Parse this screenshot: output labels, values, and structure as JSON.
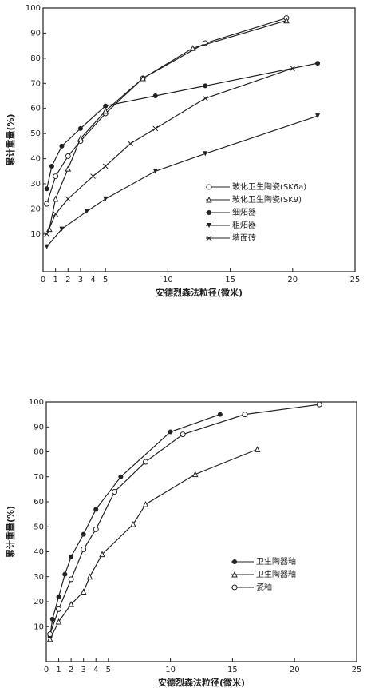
{
  "chart_data": [
    {
      "type": "line",
      "xlabel": "安德烈森法粒径(微米)",
      "ylabel": "累计重量(%)",
      "xlim": [
        0,
        25
      ],
      "ylim": [
        -5,
        100
      ],
      "xticks": [
        0,
        1,
        2,
        3,
        4,
        5,
        10,
        15,
        20,
        25
      ],
      "yticks": [
        10,
        20,
        30,
        40,
        50,
        60,
        70,
        80,
        90,
        100
      ],
      "series": [
        {
          "name": "玻化卫生陶瓷(SK6a)",
          "color": "#222",
          "marker": "circle-open",
          "x": [
            0.3,
            1,
            2,
            3,
            5,
            8,
            13,
            19.5
          ],
          "values": [
            22,
            33,
            41,
            47,
            58,
            72,
            86,
            96
          ]
        },
        {
          "name": "玻化卫生陶瓷(SK9)",
          "color": "#222",
          "marker": "triangle-open",
          "x": [
            0.5,
            1,
            2,
            3,
            5,
            8,
            12,
            19.5
          ],
          "values": [
            12,
            24,
            36,
            48,
            59,
            72,
            84,
            95
          ]
        },
        {
          "name": "细炻器",
          "color": "#222",
          "marker": "circle-filled",
          "x": [
            0.3,
            0.7,
            1.5,
            3,
            5,
            9,
            13,
            22
          ],
          "values": [
            28,
            37,
            45,
            52,
            61,
            65,
            69,
            78
          ]
        },
        {
          "name": "粗炻器",
          "color": "#222",
          "marker": "triangle-filled",
          "x": [
            0.3,
            1.5,
            3.5,
            5,
            9,
            13,
            22
          ],
          "values": [
            5,
            12,
            19,
            24,
            35,
            42,
            57
          ]
        },
        {
          "name": "墙面砖",
          "color": "#222",
          "marker": "cross",
          "x": [
            0.3,
            1,
            2,
            4,
            5,
            7,
            9,
            13,
            20
          ],
          "values": [
            10,
            18,
            24,
            33,
            37,
            46,
            52,
            64,
            76
          ]
        }
      ]
    },
    {
      "type": "line",
      "xlabel": "安德烈森法粒径(微米)",
      "ylabel": "累计重量(%)",
      "xlim": [
        0,
        25
      ],
      "ylim": [
        -4,
        100
      ],
      "xticks": [
        0,
        1,
        2,
        3,
        4,
        5,
        10,
        15,
        20,
        25
      ],
      "yticks": [
        10,
        20,
        30,
        40,
        50,
        60,
        70,
        80,
        90,
        100
      ],
      "series": [
        {
          "name": "卫生陶器釉",
          "color": "#222",
          "marker": "circle-filled",
          "x": [
            0.3,
            0.5,
            1,
            1.5,
            2,
            3,
            4,
            6,
            10,
            14
          ],
          "values": [
            6,
            13,
            22,
            31,
            38,
            47,
            57,
            70,
            88,
            95
          ]
        },
        {
          "name": "卫生陶器釉",
          "color": "#222",
          "marker": "triangle-open",
          "x": [
            0.3,
            1,
            2,
            3,
            3.5,
            4.5,
            7,
            8,
            12,
            17
          ],
          "values": [
            5,
            12,
            19,
            24,
            30,
            39,
            51,
            59,
            71,
            81
          ]
        },
        {
          "name": "瓷釉",
          "color": "#222",
          "marker": "circle-open",
          "x": [
            0.3,
            1,
            2,
            3,
            4,
            5.5,
            8,
            11,
            16,
            22
          ],
          "values": [
            7,
            17,
            29,
            41,
            49,
            64,
            76,
            87,
            95,
            99
          ]
        }
      ]
    }
  ]
}
